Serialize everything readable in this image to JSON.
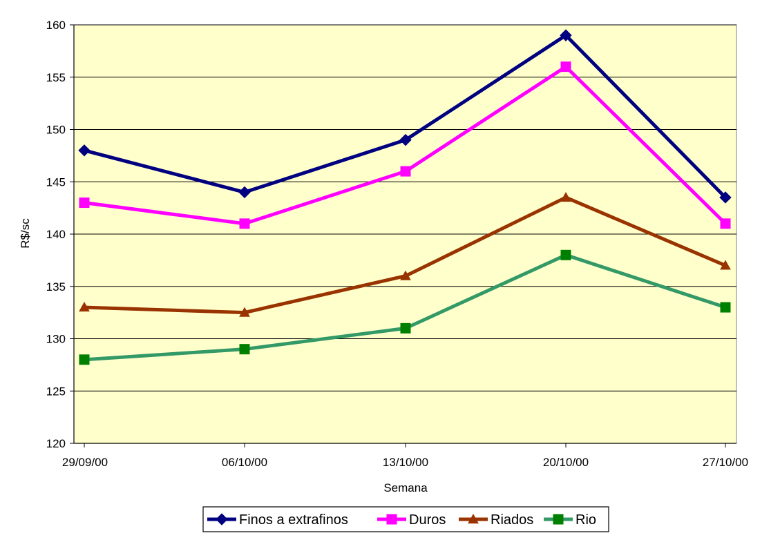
{
  "chart_data": {
    "type": "line",
    "title": "",
    "xlabel": "Semana",
    "ylabel": "R$/sc",
    "categories": [
      "29/09/00",
      "06/10/00",
      "13/10/00",
      "20/10/00",
      "27/10/00"
    ],
    "ylim": [
      120,
      160
    ],
    "ytick_step": 5,
    "grid": true,
    "legend_position": "bottom",
    "plot_background": "#FFFFCC",
    "series": [
      {
        "name": "Finos a extrafinos",
        "color": "#000080",
        "marker": "diamond",
        "values": [
          148,
          144,
          149,
          159,
          143.5
        ]
      },
      {
        "name": "Duros",
        "color": "#FF00FF",
        "marker": "square",
        "values": [
          143,
          141,
          146,
          156,
          141
        ]
      },
      {
        "name": "Riados",
        "color": "#993300",
        "marker": "triangle",
        "values": [
          133,
          132.5,
          136,
          143.5,
          137
        ]
      },
      {
        "name": "Rio",
        "color": "#339966",
        "marker_color": "#008000",
        "marker": "square",
        "values": [
          128,
          129,
          131,
          138,
          133
        ]
      }
    ]
  }
}
